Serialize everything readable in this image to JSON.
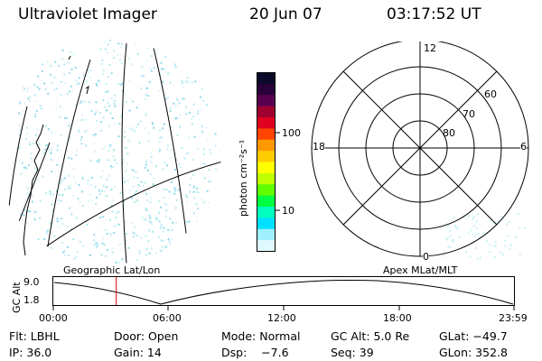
{
  "header": {
    "instrument": "Ultraviolet Imager",
    "date": "20 Jun 07",
    "time": "03:17:52 UT"
  },
  "colorbar": {
    "unit": "photon cm⁻²s⁻¹",
    "ticks": [
      "100",
      "10"
    ],
    "colors": [
      "#0a0a2a",
      "#2a003a",
      "#5a0050",
      "#a00030",
      "#e00020",
      "#ff4400",
      "#ff9900",
      "#ffcc00",
      "#ffff00",
      "#c0ff00",
      "#60ff00",
      "#00ff40",
      "#00ffc0",
      "#00e0ff",
      "#a0f0ff",
      "#e0f8ff"
    ]
  },
  "polar_plot": {
    "mlt_labels": {
      "top": "12",
      "left": "18",
      "right": "6",
      "bottom": "0"
    },
    "lat_labels": [
      "60",
      "70",
      "80"
    ]
  },
  "map_plot": {
    "label": "Geographic Lat/Lon"
  },
  "altitude_strip": {
    "axis_label": "GC Alt",
    "y_ticks": [
      "9.0",
      "1.8"
    ],
    "x_ticks": [
      "00:00",
      "06:00",
      "12:00",
      "18:00",
      "23:59"
    ],
    "right_label": "Apex MLat/MLT",
    "current_time_fraction": 0.1367
  },
  "metadata": {
    "row1": {
      "flt": "Flt: LBHL",
      "door": "Door: Open",
      "mode": "Mode: Normal",
      "gcalt": "GC Alt: 5.0 Re",
      "glat": "GLat: −49.7"
    },
    "row2": {
      "ip": "IP: 36.0",
      "gain": "Gain: 14",
      "dsp": "Dsp:    −7.6",
      "seq": "Seq: 39",
      "glon": "GLon: 352.8"
    }
  }
}
